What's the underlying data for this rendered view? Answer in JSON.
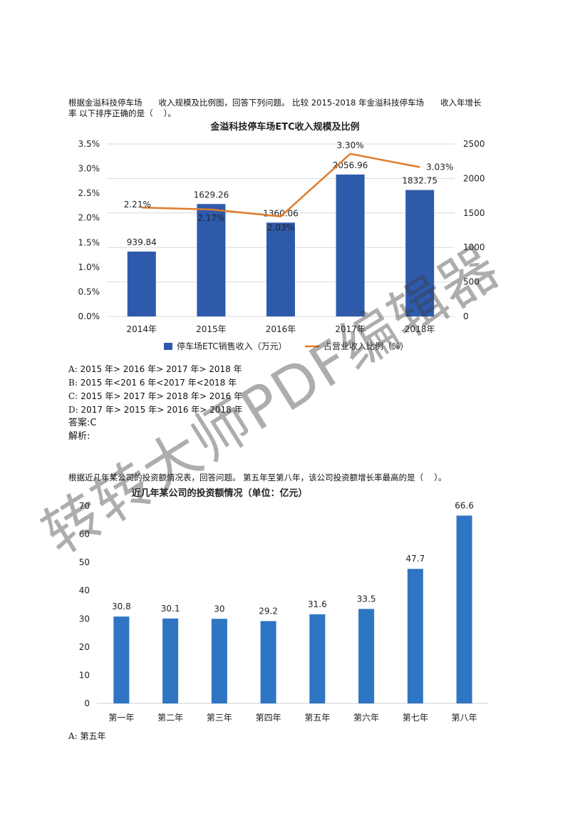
{
  "question1": {
    "line1": "根据金溢科技停车场　　收入规模及比例图，回答下列问题。 比较 2015-2018 年金溢科技停车场　　收入年增长",
    "line2": "率 以下排序正确的是（　 ）。",
    "options": [
      {
        "mark": "A:",
        "text": "2015 年> 2016 年> 2017 年> 2018 年"
      },
      {
        "mark": "B:",
        "text": "2015 年<201 6 年<2017 年<2018 年"
      },
      {
        "mark": "C:",
        "text": "2015 年> 2017 年> 2018 年> 2016 年"
      },
      {
        "mark": "D:",
        "text": "2017 年> 2015 年> 2016 年> 2018 年"
      }
    ],
    "answer": "答案:C",
    "analysis": "解析:"
  },
  "question2": {
    "line1": "根据近几年某公司的投资额情况表，回答问题。 第五年至第八年，该公司投资额增长率最高的是（　 ）。",
    "options": [
      {
        "mark": "A:",
        "text": "第五年"
      }
    ]
  },
  "watermark": "转转大师PDF编辑器",
  "chart_data": [
    {
      "type": "bar+line",
      "title": "金溢科技停车场ETC收入规模及比例",
      "categories": [
        "2014年",
        "2015年",
        "2016年",
        "2017年",
        "2018年"
      ],
      "series": [
        {
          "name": "停车场ETC销售收入（万元）",
          "type": "bar",
          "axis": "right",
          "values": [
            939.84,
            1629.26,
            1360.06,
            2056.96,
            1832.75
          ],
          "labels": [
            "939.84",
            "1629.26",
            "1360.06",
            "2056.96",
            "1832.75"
          ]
        },
        {
          "name": "占营业收入比例（%）",
          "type": "line",
          "axis": "left",
          "values": [
            2.21,
            2.17,
            2.03,
            3.3,
            3.03
          ],
          "labels": [
            "2.21%",
            "2.17%",
            "2.03%",
            "3.30%",
            "3.03%"
          ]
        }
      ],
      "left_axis": {
        "ticks": [
          "0.0%",
          "0.5%",
          "1.0%",
          "1.5%",
          "2.0%",
          "2.5%",
          "3.0%",
          "3.5%"
        ],
        "ylim": [
          0,
          3.5
        ]
      },
      "right_axis": {
        "ticks": [
          "0",
          "500",
          "1000",
          "1500",
          "2000",
          "2500"
        ],
        "ylim": [
          0,
          2500
        ]
      },
      "grid": true,
      "legend": "bottom",
      "colors": {
        "bar": "#2E5AAC",
        "line": "#E07B2A"
      }
    },
    {
      "type": "bar",
      "title": "近几年某公司的投资额情况（单位：亿元）",
      "categories": [
        "第一年",
        "第二年",
        "第三年",
        "第四年",
        "第五年",
        "第六年",
        "第七年",
        "第八年"
      ],
      "values": [
        30.8,
        30.1,
        30,
        29.2,
        31.6,
        33.5,
        47.7,
        66.6
      ],
      "labels": [
        "30.8",
        "30.1",
        "30",
        "29.2",
        "31.6",
        "33.5",
        "47.7",
        "66.6"
      ],
      "yticks": [
        "0",
        "10",
        "20",
        "30",
        "40",
        "50",
        "60",
        "70"
      ],
      "ylim": [
        0,
        70
      ],
      "grid": false,
      "colors": {
        "bar": "#2E75C3"
      }
    }
  ]
}
